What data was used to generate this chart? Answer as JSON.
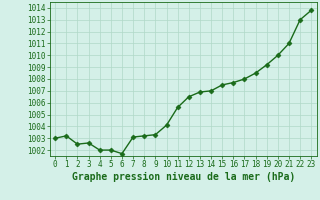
{
  "x": [
    0,
    1,
    2,
    3,
    4,
    5,
    6,
    7,
    8,
    9,
    10,
    11,
    12,
    13,
    14,
    15,
    16,
    17,
    18,
    19,
    20,
    21,
    22,
    23
  ],
  "y": [
    1003.0,
    1003.2,
    1002.5,
    1002.6,
    1002.0,
    1002.0,
    1001.7,
    1003.1,
    1003.2,
    1003.3,
    1004.1,
    1005.6,
    1006.5,
    1006.9,
    1007.0,
    1007.5,
    1007.7,
    1008.0,
    1008.5,
    1009.2,
    1010.0,
    1011.0,
    1013.0,
    1013.8
  ],
  "ylim": [
    1001.5,
    1014.5
  ],
  "yticks": [
    1002,
    1003,
    1004,
    1005,
    1006,
    1007,
    1008,
    1009,
    1010,
    1011,
    1012,
    1013,
    1014
  ],
  "xlim": [
    -0.5,
    23.5
  ],
  "xticks": [
    0,
    1,
    2,
    3,
    4,
    5,
    6,
    7,
    8,
    9,
    10,
    11,
    12,
    13,
    14,
    15,
    16,
    17,
    18,
    19,
    20,
    21,
    22,
    23
  ],
  "xlabel": "Graphe pression niveau de la mer (hPa)",
  "line_color": "#1a6b1a",
  "marker": "D",
  "marker_size": 2.5,
  "bg_color": "#d4f0e8",
  "grid_color": "#b0d8c8",
  "xlabel_fontsize": 7,
  "tick_fontsize": 5.5,
  "line_width": 1.0
}
